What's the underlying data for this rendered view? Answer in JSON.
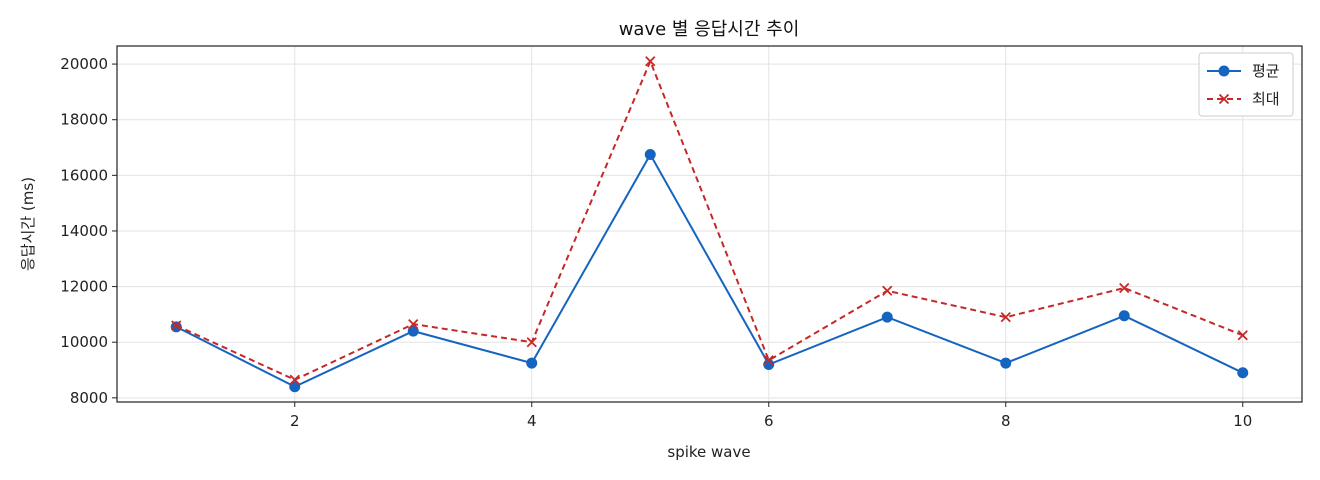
{
  "chart_data": {
    "type": "line",
    "title": "wave 별 응답시간 추이",
    "xlabel": "spike wave",
    "ylabel": "응답시간 (ms)",
    "x": [
      1,
      2,
      3,
      4,
      5,
      6,
      7,
      8,
      9,
      10
    ],
    "xlim": [
      0.5,
      10.5
    ],
    "ylim": [
      7850,
      20650
    ],
    "xticks": [
      2,
      4,
      6,
      8,
      10
    ],
    "xtick_labels": [
      "2",
      "4",
      "6",
      "8",
      "10"
    ],
    "yticks": [
      8000,
      10000,
      12000,
      14000,
      16000,
      18000,
      20000
    ],
    "ytick_labels": [
      "8000",
      "10000",
      "12000",
      "14000",
      "16000",
      "18000",
      "20000"
    ],
    "grid": true,
    "legend_position": "top-right",
    "series": [
      {
        "name": "평균",
        "values": [
          10550,
          8400,
          10400,
          9250,
          16750,
          9200,
          10900,
          9250,
          10950,
          8900
        ],
        "color": "#1565c0",
        "marker": "circle",
        "line_style": "solid"
      },
      {
        "name": "최대",
        "values": [
          10600,
          8650,
          10650,
          10000,
          20100,
          9350,
          11850,
          10900,
          11950,
          10250
        ],
        "color": "#c62828",
        "marker": "x",
        "line_style": "dashed"
      }
    ]
  }
}
